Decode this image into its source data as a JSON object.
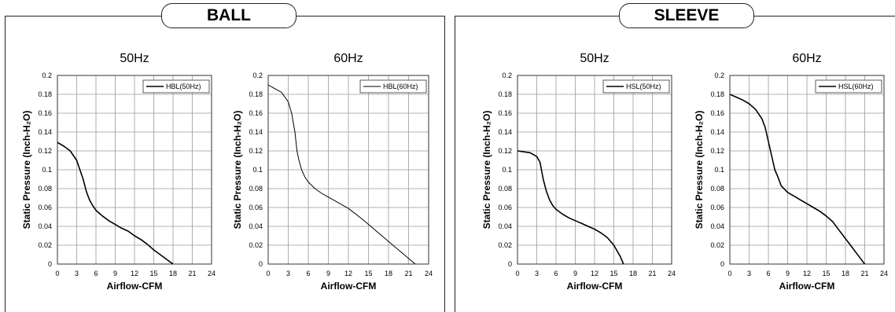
{
  "panels": [
    {
      "title": "BALL"
    },
    {
      "title": "SLEEVE"
    }
  ],
  "colors": {
    "grid": "#9a9a9a",
    "curve": "#000000",
    "frame": "#222222"
  },
  "chart_data": [
    {
      "type": "line",
      "title": "50Hz",
      "xlabel": "Airflow-CFM",
      "ylabel": "Static Pressure (Inch-H₂O)",
      "xlim": [
        0,
        24
      ],
      "ylim": [
        0,
        0.2
      ],
      "xticks": [
        "0",
        "3",
        "6",
        "9",
        "12",
        "15",
        "18",
        "21",
        "24"
      ],
      "yticks": [
        "0",
        "0.02",
        "0.04",
        "0.06",
        "0.08",
        "0.1",
        "0.12",
        "0.14",
        "0.16",
        "0.18",
        "0.2"
      ],
      "grid": true,
      "legend_position": "top-right",
      "series": [
        {
          "name": "HBL(50Hz)",
          "x": [
            0,
            1,
            2,
            3,
            3.5,
            4,
            4.5,
            5,
            5.5,
            6,
            7,
            8,
            9,
            10,
            11,
            12,
            13,
            14,
            15,
            16,
            17,
            18
          ],
          "y": [
            0.129,
            0.125,
            0.12,
            0.11,
            0.1,
            0.09,
            0.077,
            0.068,
            0.062,
            0.057,
            0.051,
            0.046,
            0.042,
            0.038,
            0.035,
            0.03,
            0.026,
            0.021,
            0.015,
            0.01,
            0.005,
            0
          ]
        }
      ]
    },
    {
      "type": "line",
      "title": "60Hz",
      "xlabel": "Airflow-CFM",
      "ylabel": "Static Pressure (Inch-H₂O)",
      "xlim": [
        0,
        24
      ],
      "ylim": [
        0,
        0.2
      ],
      "xticks": [
        "0",
        "3",
        "6",
        "9",
        "12",
        "15",
        "18",
        "21",
        "24"
      ],
      "yticks": [
        "0",
        "0.02",
        "0.04",
        "0.06",
        "0.08",
        "0.1",
        "0.12",
        "0.14",
        "0.16",
        "0.18",
        "0.2"
      ],
      "grid": true,
      "legend_position": "top-right",
      "series": [
        {
          "name": "HBL(60Hz)",
          "x": [
            0,
            1,
            2,
            3,
            3.5,
            4,
            4.3,
            4.6,
            5,
            5.5,
            6,
            7,
            8,
            9,
            10,
            11,
            12,
            14,
            16,
            18,
            20,
            22
          ],
          "y": [
            0.19,
            0.186,
            0.182,
            0.172,
            0.16,
            0.14,
            0.12,
            0.11,
            0.1,
            0.092,
            0.087,
            0.08,
            0.075,
            0.071,
            0.067,
            0.063,
            0.059,
            0.048,
            0.036,
            0.024,
            0.012,
            0
          ]
        }
      ]
    },
    {
      "type": "line",
      "title": "50Hz",
      "xlabel": "Airflow-CFM",
      "ylabel": "Static Pressure (Inch-H₂O)",
      "xlim": [
        0,
        24
      ],
      "ylim": [
        0,
        0.2
      ],
      "xticks": [
        "0",
        "3",
        "6",
        "9",
        "12",
        "15",
        "18",
        "21",
        "24"
      ],
      "yticks": [
        "0",
        "0.02",
        "0.04",
        "0.06",
        "0.08",
        "0.1",
        "0.12",
        "0.14",
        "0.16",
        "0.18",
        "0.2"
      ],
      "grid": true,
      "legend_position": "top-right",
      "series": [
        {
          "name": "HSL(50Hz)",
          "x": [
            0,
            1,
            2,
            3,
            3.5,
            4,
            4.5,
            5,
            5.5,
            6,
            7,
            8,
            9,
            10,
            11,
            12,
            13,
            14,
            15,
            16,
            16.5
          ],
          "y": [
            0.12,
            0.119,
            0.118,
            0.114,
            0.108,
            0.09,
            0.077,
            0.068,
            0.062,
            0.058,
            0.053,
            0.049,
            0.046,
            0.043,
            0.04,
            0.037,
            0.033,
            0.028,
            0.02,
            0.008,
            0
          ]
        }
      ]
    },
    {
      "type": "line",
      "title": "60Hz",
      "xlabel": "Airflow-CFM",
      "ylabel": "Static Pressure (Inch-H₂O)",
      "xlim": [
        0,
        24
      ],
      "ylim": [
        0,
        0.2
      ],
      "xticks": [
        "0",
        "3",
        "6",
        "9",
        "12",
        "15",
        "18",
        "21",
        "24"
      ],
      "yticks": [
        "0",
        "0.02",
        "0.04",
        "0.06",
        "0.08",
        "0.1",
        "0.12",
        "0.14",
        "0.16",
        "0.18",
        "0.2"
      ],
      "grid": true,
      "legend_position": "top-right",
      "series": [
        {
          "name": "HSL(60Hz)",
          "x": [
            0,
            1,
            2,
            3,
            4,
            5,
            5.5,
            6,
            6.5,
            7,
            7.5,
            8,
            9,
            10,
            11,
            12,
            13,
            14,
            15,
            16,
            17,
            18,
            19,
            20,
            21
          ],
          "y": [
            0.18,
            0.177,
            0.174,
            0.17,
            0.164,
            0.154,
            0.145,
            0.13,
            0.115,
            0.1,
            0.092,
            0.083,
            0.076,
            0.072,
            0.068,
            0.064,
            0.06,
            0.056,
            0.051,
            0.045,
            0.036,
            0.027,
            0.018,
            0.009,
            0
          ]
        }
      ]
    }
  ]
}
